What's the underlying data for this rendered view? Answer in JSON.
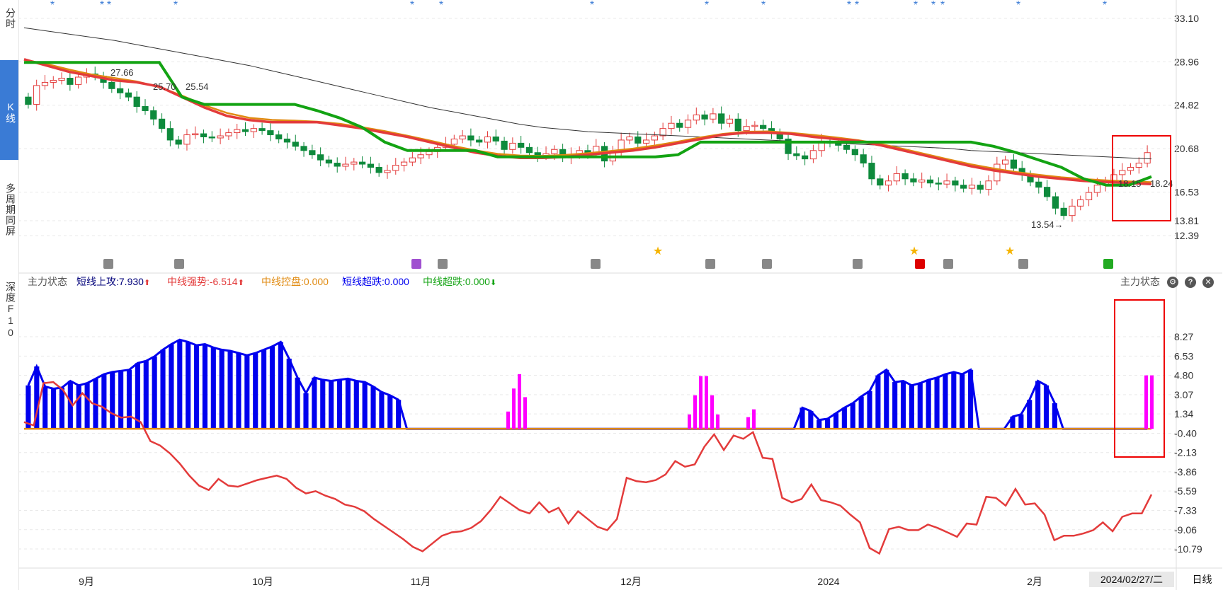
{
  "left_tabs": [
    {
      "label": "分时",
      "active": false
    },
    {
      "label": "K线",
      "active": true
    },
    {
      "label": "多周期同屏",
      "active": false
    },
    {
      "label": "深度F10",
      "active": false
    }
  ],
  "indicator": {
    "name": "主力状态",
    "right_name": "主力状态",
    "items": [
      {
        "label": "短线上攻:7.930",
        "color": "#00007a",
        "arrow": "up"
      },
      {
        "label": "中线强势:-6.514",
        "color": "#e33b3b",
        "arrow": "up"
      },
      {
        "label": "中线控盘:0.000",
        "color": "#e08a10",
        "arrow": ""
      },
      {
        "label": "短线超跌:0.000",
        "color": "#0000ee",
        "arrow": ""
      },
      {
        "label": "中线超跌:0.000",
        "color": "#13a313",
        "arrow": "down"
      }
    ],
    "icons": [
      "gear-icon",
      "help-icon",
      "close-icon"
    ]
  },
  "footer": {
    "date": "2024/02/27/二",
    "period": "日线"
  },
  "colors": {
    "up": "#e33b3b",
    "down": "#0e8a3c",
    "blue": "#0000ee",
    "magenta": "#ff00ff",
    "orange": "#e08a10",
    "green": "#13a313",
    "black": "#222222"
  },
  "chart_data": [
    {
      "type": "candlestick",
      "y_ticks": [
        "33.10",
        "28.96",
        "24.82",
        "20.68",
        "16.53",
        "13.81",
        "12.39"
      ],
      "x_labels": [
        "9月",
        "10月",
        "11月",
        "12月",
        "2024",
        "2月"
      ],
      "annotations": [
        "27.66",
        "25.70",
        "25.54",
        "13.54",
        "18.15",
        "18.24"
      ],
      "candles_close": [
        24.9,
        26.7,
        27.0,
        27.2,
        27.4,
        26.8,
        27.5,
        27.8,
        27.6,
        27.0,
        26.4,
        26.0,
        25.6,
        24.7,
        24.3,
        23.5,
        22.6,
        21.5,
        21.1,
        22.0,
        22.1,
        21.8,
        21.7,
        21.9,
        22.2,
        22.5,
        22.3,
        22.6,
        22.4,
        22.0,
        21.6,
        21.3,
        20.9,
        20.5,
        20.1,
        19.6,
        19.3,
        19.0,
        19.2,
        19.4,
        19.2,
        18.9,
        18.4,
        18.6,
        19.1,
        19.4,
        19.8,
        20.1,
        20.4,
        20.8,
        21.1,
        21.6,
        21.9,
        21.5,
        21.3,
        21.8,
        21.4,
        20.6,
        21.2,
        20.8,
        20.3,
        20.0,
        20.2,
        20.6,
        19.8,
        20.1,
        20.5,
        20.3,
        20.9,
        19.5,
        20.4,
        21.5,
        21.8,
        21.2,
        21.5,
        21.9,
        22.6,
        23.1,
        22.7,
        23.4,
        23.9,
        23.5,
        24.0,
        23.1,
        23.5,
        22.4,
        22.8,
        22.9,
        22.6,
        22.2,
        21.6,
        20.2,
        20.0,
        19.7,
        20.5,
        21.4,
        21.2,
        21.0,
        20.6,
        20.1,
        19.3,
        17.8,
        17.2,
        17.6,
        18.3,
        17.8,
        17.5,
        17.7,
        17.4,
        17.3,
        17.6,
        17.2,
        16.9,
        17.2,
        16.8,
        17.6,
        19.2,
        19.6,
        18.8,
        18.2,
        17.5,
        17.0,
        16.1,
        15.0,
        14.3,
        15.2,
        15.8,
        16.5,
        17.2,
        17.6,
        18.2,
        18.6,
        18.9,
        19.3,
        20.3
      ],
      "ma_black": [
        32.2,
        31.9,
        31.6,
        31.3,
        31.0,
        30.6,
        30.2,
        29.8,
        29.4,
        29.0,
        28.6,
        28.1,
        27.6,
        27.1,
        26.6,
        26.1,
        25.6,
        25.1,
        24.6,
        24.2,
        23.8,
        23.4,
        23.0,
        22.7,
        22.5,
        22.3,
        22.2,
        22.1,
        22.0,
        21.9,
        21.8,
        21.7,
        21.6,
        21.5,
        21.4,
        21.3,
        21.2,
        21.1,
        21.0,
        20.9,
        20.8,
        20.7,
        20.5,
        20.4,
        20.3,
        20.2,
        20.1,
        20.0,
        19.9,
        19.8,
        19.7
      ],
      "ma_red": [
        29.2,
        28.6,
        28.0,
        27.6,
        27.2,
        27.0,
        26.6,
        25.6,
        24.6,
        23.8,
        23.4,
        23.2,
        23.2,
        23.2,
        22.9,
        22.6,
        22.2,
        21.8,
        21.3,
        20.8,
        20.3,
        20.0,
        19.8,
        19.8,
        19.9,
        20.1,
        20.3,
        20.5,
        20.8,
        21.2,
        21.6,
        22.0,
        22.2,
        22.2,
        22.1,
        21.8,
        21.6,
        21.4,
        21.0,
        20.5,
        20.0,
        19.5,
        19.0,
        18.6,
        18.3,
        18.0,
        17.8,
        17.6,
        17.5,
        17.4,
        17.3
      ]
    },
    {
      "type": "bar",
      "y_ticks": [
        "8.27",
        "6.53",
        "4.80",
        "3.07",
        "1.34",
        "-0.40",
        "-2.13",
        "-3.86",
        "-5.59",
        "-7.33",
        "-9.06",
        "-10.79"
      ],
      "series": [
        {
          "name": "短线上攻",
          "values": [
            3.9,
            5.6,
            3.8,
            3.6,
            3.7,
            4.3,
            3.9,
            4.1,
            4.5,
            4.9,
            5.1,
            5.2,
            5.3,
            5.9,
            6.1,
            6.5,
            7.1,
            7.6,
            8.0,
            7.8,
            7.5,
            7.6,
            7.3,
            7.1,
            7.0,
            6.8,
            6.6,
            6.8,
            7.1,
            7.4,
            7.8,
            6.3,
            4.6,
            3.2,
            4.6,
            4.4,
            4.3,
            4.4,
            4.5,
            4.3,
            4.2,
            3.8,
            3.3,
            3.0,
            2.6,
            0,
            0,
            0,
            0,
            0,
            0,
            0,
            0,
            0,
            0,
            0,
            0,
            0,
            0,
            0,
            0,
            0,
            0,
            0,
            0,
            0,
            0,
            0,
            0,
            0,
            0,
            0,
            0,
            0,
            0,
            0,
            0,
            0,
            0,
            0,
            0,
            0,
            0,
            0,
            0,
            0,
            0,
            0,
            0,
            0,
            0,
            0,
            1.9,
            1.6,
            0.8,
            0.9,
            1.4,
            1.9,
            2.3,
            2.9,
            3.4,
            4.8,
            5.3,
            4.2,
            4.3,
            3.9,
            4.1,
            4.4,
            4.6,
            4.9,
            5.1,
            4.9,
            5.3,
            0,
            0,
            0,
            0,
            1.1,
            1.3,
            2.6,
            4.3,
            3.9,
            2.3,
            0,
            0,
            0,
            0,
            0,
            0,
            0,
            0,
            0,
            0,
            0
          ]
        },
        {
          "name": "中线强势",
          "values": [
            0.6,
            0.3,
            4.1,
            4.2,
            3.5,
            2.1,
            3.2,
            2.3,
            2.0,
            1.4,
            1.0,
            1.1,
            0.6,
            -1.1,
            -1.5,
            -2.2,
            -3.1,
            -4.2,
            -5.1,
            -5.5,
            -4.5,
            -5.1,
            -5.2,
            -4.9,
            -4.6,
            -4.4,
            -4.2,
            -4.5,
            -5.3,
            -5.8,
            -5.6,
            -6.0,
            -6.3,
            -6.8,
            -7.0,
            -7.4,
            -8.1,
            -8.7,
            -9.3,
            -9.9,
            -10.6,
            -11.0,
            -10.3,
            -9.6,
            -9.3,
            -9.2,
            -8.9,
            -8.3,
            -7.3,
            -6.1,
            -6.7,
            -7.3,
            -7.6,
            -6.6,
            -7.5,
            -7.1,
            -8.5,
            -7.4,
            -8.1,
            -8.8,
            -9.1,
            -8.1,
            -4.4,
            -4.7,
            -4.8,
            -4.6,
            -4.1,
            -2.9,
            -3.4,
            -3.2,
            -1.6,
            -0.5,
            -1.9,
            -0.6,
            -0.9,
            -0.3,
            -2.6,
            -2.7,
            -6.2,
            -6.6,
            -6.3,
            -5.0,
            -6.4,
            -6.6,
            -6.9,
            -7.7,
            -8.4,
            -10.7,
            -11.2,
            -9.0,
            -8.8,
            -9.1,
            -9.1,
            -8.6,
            -8.9,
            -9.3,
            -9.7,
            -8.5,
            -8.6,
            -6.1,
            -6.2,
            -6.9,
            -5.4,
            -6.8,
            -6.7,
            -7.7,
            -10.0,
            -9.6,
            -9.6,
            -9.4,
            -9.1,
            -8.4,
            -9.2,
            -7.9,
            -7.6,
            -7.6,
            -5.9
          ]
        }
      ]
    }
  ]
}
